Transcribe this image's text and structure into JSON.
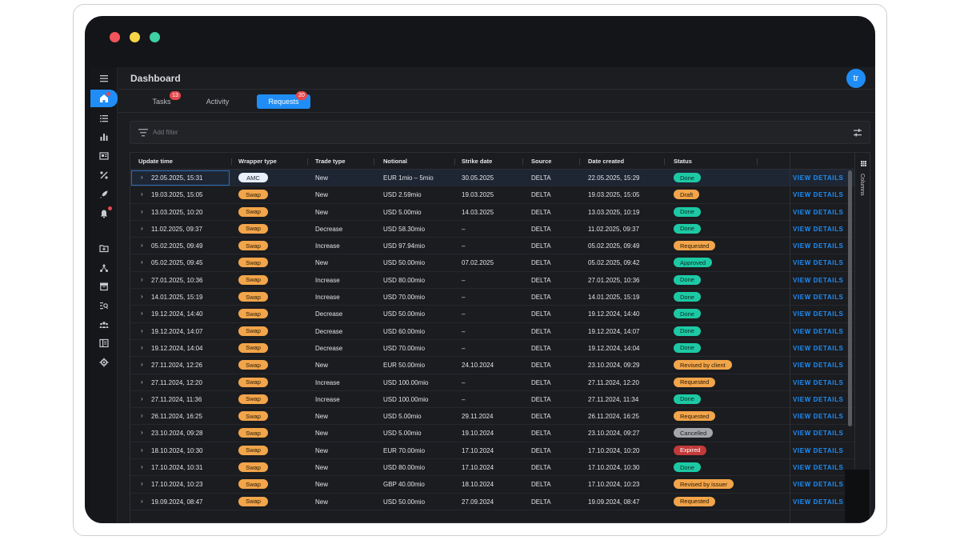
{
  "window": {
    "dot_colors": [
      "#f2545b",
      "#f5d547",
      "#3fd0a4"
    ]
  },
  "header": {
    "title": "Dashboard",
    "avatar_initials": "tr"
  },
  "tabs": [
    {
      "label": "Tasks",
      "badge": "13",
      "active": false
    },
    {
      "label": "Activity",
      "badge": "",
      "active": false
    },
    {
      "label": "Requests",
      "badge": "20",
      "active": true
    }
  ],
  "filter": {
    "placeholder": "Add filter"
  },
  "table": {
    "columns": [
      "Update time",
      "Wrapper type",
      "Trade type",
      "Notional",
      "Strike date",
      "Source",
      "Date created",
      "Status"
    ],
    "action_label": "VIEW DETAILS",
    "columns_panel_label": "Columns",
    "rows": [
      {
        "update": "22.05.2025, 15:31",
        "wrapper": "AMC",
        "trade": "New",
        "notional": "EUR 1mio – 5mio",
        "strike": "30.05.2025",
        "source": "DELTA",
        "created": "22.05.2025, 15:29",
        "status": "Done"
      },
      {
        "update": "19.03.2025, 15:05",
        "wrapper": "Swap",
        "trade": "New",
        "notional": "USD 2.59mio",
        "strike": "19.03.2025",
        "source": "DELTA",
        "created": "19.03.2025, 15:05",
        "status": "Draft"
      },
      {
        "update": "13.03.2025, 10:20",
        "wrapper": "Swap",
        "trade": "New",
        "notional": "USD 5.00mio",
        "strike": "14.03.2025",
        "source": "DELTA",
        "created": "13.03.2025, 10:19",
        "status": "Done"
      },
      {
        "update": "11.02.2025, 09:37",
        "wrapper": "Swap",
        "trade": "Decrease",
        "notional": "USD 58.30mio",
        "strike": "–",
        "source": "DELTA",
        "created": "11.02.2025, 09:37",
        "status": "Done"
      },
      {
        "update": "05.02.2025, 09:49",
        "wrapper": "Swap",
        "trade": "Increase",
        "notional": "USD 97.94mio",
        "strike": "–",
        "source": "DELTA",
        "created": "05.02.2025, 09:49",
        "status": "Requested"
      },
      {
        "update": "05.02.2025, 09:45",
        "wrapper": "Swap",
        "trade": "New",
        "notional": "USD 50.00mio",
        "strike": "07.02.2025",
        "source": "DELTA",
        "created": "05.02.2025, 09:42",
        "status": "Approved"
      },
      {
        "update": "27.01.2025, 10:36",
        "wrapper": "Swap",
        "trade": "Increase",
        "notional": "USD 80.00mio",
        "strike": "–",
        "source": "DELTA",
        "created": "27.01.2025, 10:36",
        "status": "Done"
      },
      {
        "update": "14.01.2025, 15:19",
        "wrapper": "Swap",
        "trade": "Increase",
        "notional": "USD 70.00mio",
        "strike": "–",
        "source": "DELTA",
        "created": "14.01.2025, 15:19",
        "status": "Done"
      },
      {
        "update": "19.12.2024, 14:40",
        "wrapper": "Swap",
        "trade": "Decrease",
        "notional": "USD 50.00mio",
        "strike": "–",
        "source": "DELTA",
        "created": "19.12.2024, 14:40",
        "status": "Done"
      },
      {
        "update": "19.12.2024, 14:07",
        "wrapper": "Swap",
        "trade": "Decrease",
        "notional": "USD 60.00mio",
        "strike": "–",
        "source": "DELTA",
        "created": "19.12.2024, 14:07",
        "status": "Done"
      },
      {
        "update": "19.12.2024, 14:04",
        "wrapper": "Swap",
        "trade": "Decrease",
        "notional": "USD 70.00mio",
        "strike": "–",
        "source": "DELTA",
        "created": "19.12.2024, 14:04",
        "status": "Done"
      },
      {
        "update": "27.11.2024, 12:26",
        "wrapper": "Swap",
        "trade": "New",
        "notional": "EUR 50.00mio",
        "strike": "24.10.2024",
        "source": "DELTA",
        "created": "23.10.2024, 09:29",
        "status": "Revised by client"
      },
      {
        "update": "27.11.2024, 12:20",
        "wrapper": "Swap",
        "trade": "Increase",
        "notional": "USD 100.00mio",
        "strike": "–",
        "source": "DELTA",
        "created": "27.11.2024, 12:20",
        "status": "Requested"
      },
      {
        "update": "27.11.2024, 11:36",
        "wrapper": "Swap",
        "trade": "Increase",
        "notional": "USD 100.00mio",
        "strike": "–",
        "source": "DELTA",
        "created": "27.11.2024, 11:34",
        "status": "Done"
      },
      {
        "update": "26.11.2024, 16:25",
        "wrapper": "Swap",
        "trade": "New",
        "notional": "USD 5.00mio",
        "strike": "29.11.2024",
        "source": "DELTA",
        "created": "26.11.2024, 16:25",
        "status": "Requested"
      },
      {
        "update": "23.10.2024, 09:28",
        "wrapper": "Swap",
        "trade": "New",
        "notional": "USD 5.00mio",
        "strike": "19.10.2024",
        "source": "DELTA",
        "created": "23.10.2024, 09:27",
        "status": "Cancelled"
      },
      {
        "update": "18.10.2024, 10:30",
        "wrapper": "Swap",
        "trade": "New",
        "notional": "EUR 70.00mio",
        "strike": "17.10.2024",
        "source": "DELTA",
        "created": "17.10.2024, 10:20",
        "status": "Expired"
      },
      {
        "update": "17.10.2024, 10:31",
        "wrapper": "Swap",
        "trade": "New",
        "notional": "USD 80.00mio",
        "strike": "17.10.2024",
        "source": "DELTA",
        "created": "17.10.2024, 10:30",
        "status": "Done"
      },
      {
        "update": "17.10.2024, 10:23",
        "wrapper": "Swap",
        "trade": "New",
        "notional": "GBP 40.00mio",
        "strike": "18.10.2024",
        "source": "DELTA",
        "created": "17.10.2024, 10:23",
        "status": "Revised by issuer"
      },
      {
        "update": "19.09.2024, 08:47",
        "wrapper": "Swap",
        "trade": "New",
        "notional": "USD 50.00mio",
        "strike": "27.09.2024",
        "source": "DELTA",
        "created": "19.09.2024, 08:47",
        "status": "Requested"
      }
    ]
  },
  "status_colors": {
    "Done": {
      "bg": "#1cc9a4",
      "fg": "#0f2a24"
    },
    "Draft": {
      "bg": "#f2a54a",
      "fg": "#2a1a06"
    },
    "Requested": {
      "bg": "#f2a54a",
      "fg": "#2a1a06"
    },
    "Approved": {
      "bg": "#1cc9a4",
      "fg": "#0f2a24"
    },
    "Revised by client": {
      "bg": "#f2a54a",
      "fg": "#2a1a06"
    },
    "Revised by issuer": {
      "bg": "#f2a54a",
      "fg": "#2a1a06"
    },
    "Cancelled": {
      "bg": "#a4a6ac",
      "fg": "#1e1f22"
    },
    "Expired": {
      "bg": "#c23a3a",
      "fg": "#ffffff"
    }
  },
  "wrapper_colors": {
    "AMC": {
      "bg": "#e7f1fb",
      "fg": "#1b2330"
    },
    "Swap": {
      "bg": "#f2a54a",
      "fg": "#2a1a06"
    }
  },
  "sidebar": {
    "icons": [
      "menu-icon",
      "home-icon",
      "list-icon",
      "bar-chart-icon",
      "newspaper-icon",
      "percent-icon",
      "rocket-icon",
      "bell-icon",
      "folder-icon",
      "network-icon",
      "archive-icon",
      "search-list-icon",
      "users-icon",
      "ledger-icon",
      "gear-icon"
    ]
  }
}
